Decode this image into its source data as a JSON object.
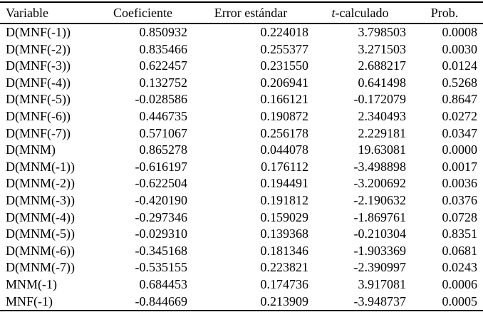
{
  "table": {
    "header": {
      "variable": "Variable",
      "coeficiente": "Coeficiente",
      "error_estandar": "Error estándar",
      "t_italic": "t",
      "t_rest": "-calculado",
      "prob": "Prob."
    },
    "rows": [
      [
        "D(MNF(-1))",
        "0.850932",
        "0.224018",
        "3.798503",
        "0.0008"
      ],
      [
        "D(MNF(-2))",
        "0.835466",
        "0.255377",
        "3.271503",
        "0.0030"
      ],
      [
        "D(MNF(-3))",
        "0.622457",
        "0.231550",
        "2.688217",
        "0.0124"
      ],
      [
        "D(MNF(-4))",
        "0.132752",
        "0.206941",
        "0.641498",
        "0.5268"
      ],
      [
        "D(MNF(-5))",
        "-0.028586",
        "0.166121",
        "-0.172079",
        "0.8647"
      ],
      [
        "D(MNF(-6))",
        "0.446735",
        "0.190872",
        "2.340493",
        "0.0272"
      ],
      [
        "D(MNF(-7))",
        "0.571067",
        "0.256178",
        "2.229181",
        "0.0347"
      ],
      [
        "D(MNM)",
        "0.865278",
        "0.044078",
        "19.63081",
        "0.0000"
      ],
      [
        "D(MNM(-1))",
        "-0.616197",
        "0.176112",
        "-3.498898",
        "0.0017"
      ],
      [
        "D(MNM(-2))",
        "-0.622504",
        "0.194491",
        "-3.200692",
        "0.0036"
      ],
      [
        "D(MNM(-3))",
        "-0.420190",
        "0.191812",
        "-2.190632",
        "0.0376"
      ],
      [
        "D(MNM(-4))",
        "-0.297346",
        "0.159029",
        "-1.869761",
        "0.0728"
      ],
      [
        "D(MNM(-5))",
        "-0.029310",
        "0.139368",
        "-0.210304",
        "0.8351"
      ],
      [
        "D(MNM(-6))",
        "-0.345168",
        "0.181346",
        "-1.903369",
        "0.0681"
      ],
      [
        "D(MNM(-7))",
        "-0.535155",
        "0.223821",
        "-2.390997",
        "0.0243"
      ],
      [
        "MNM(-1)",
        "0.684453",
        "0.174736",
        "3.917081",
        "0.0006"
      ],
      [
        "MNF(-1)",
        "-0.844669",
        "0.213909",
        "-3.948737",
        "0.0005"
      ]
    ],
    "text_color": "#000000",
    "rule_color": "#000000",
    "background_color": "#ffffff"
  }
}
